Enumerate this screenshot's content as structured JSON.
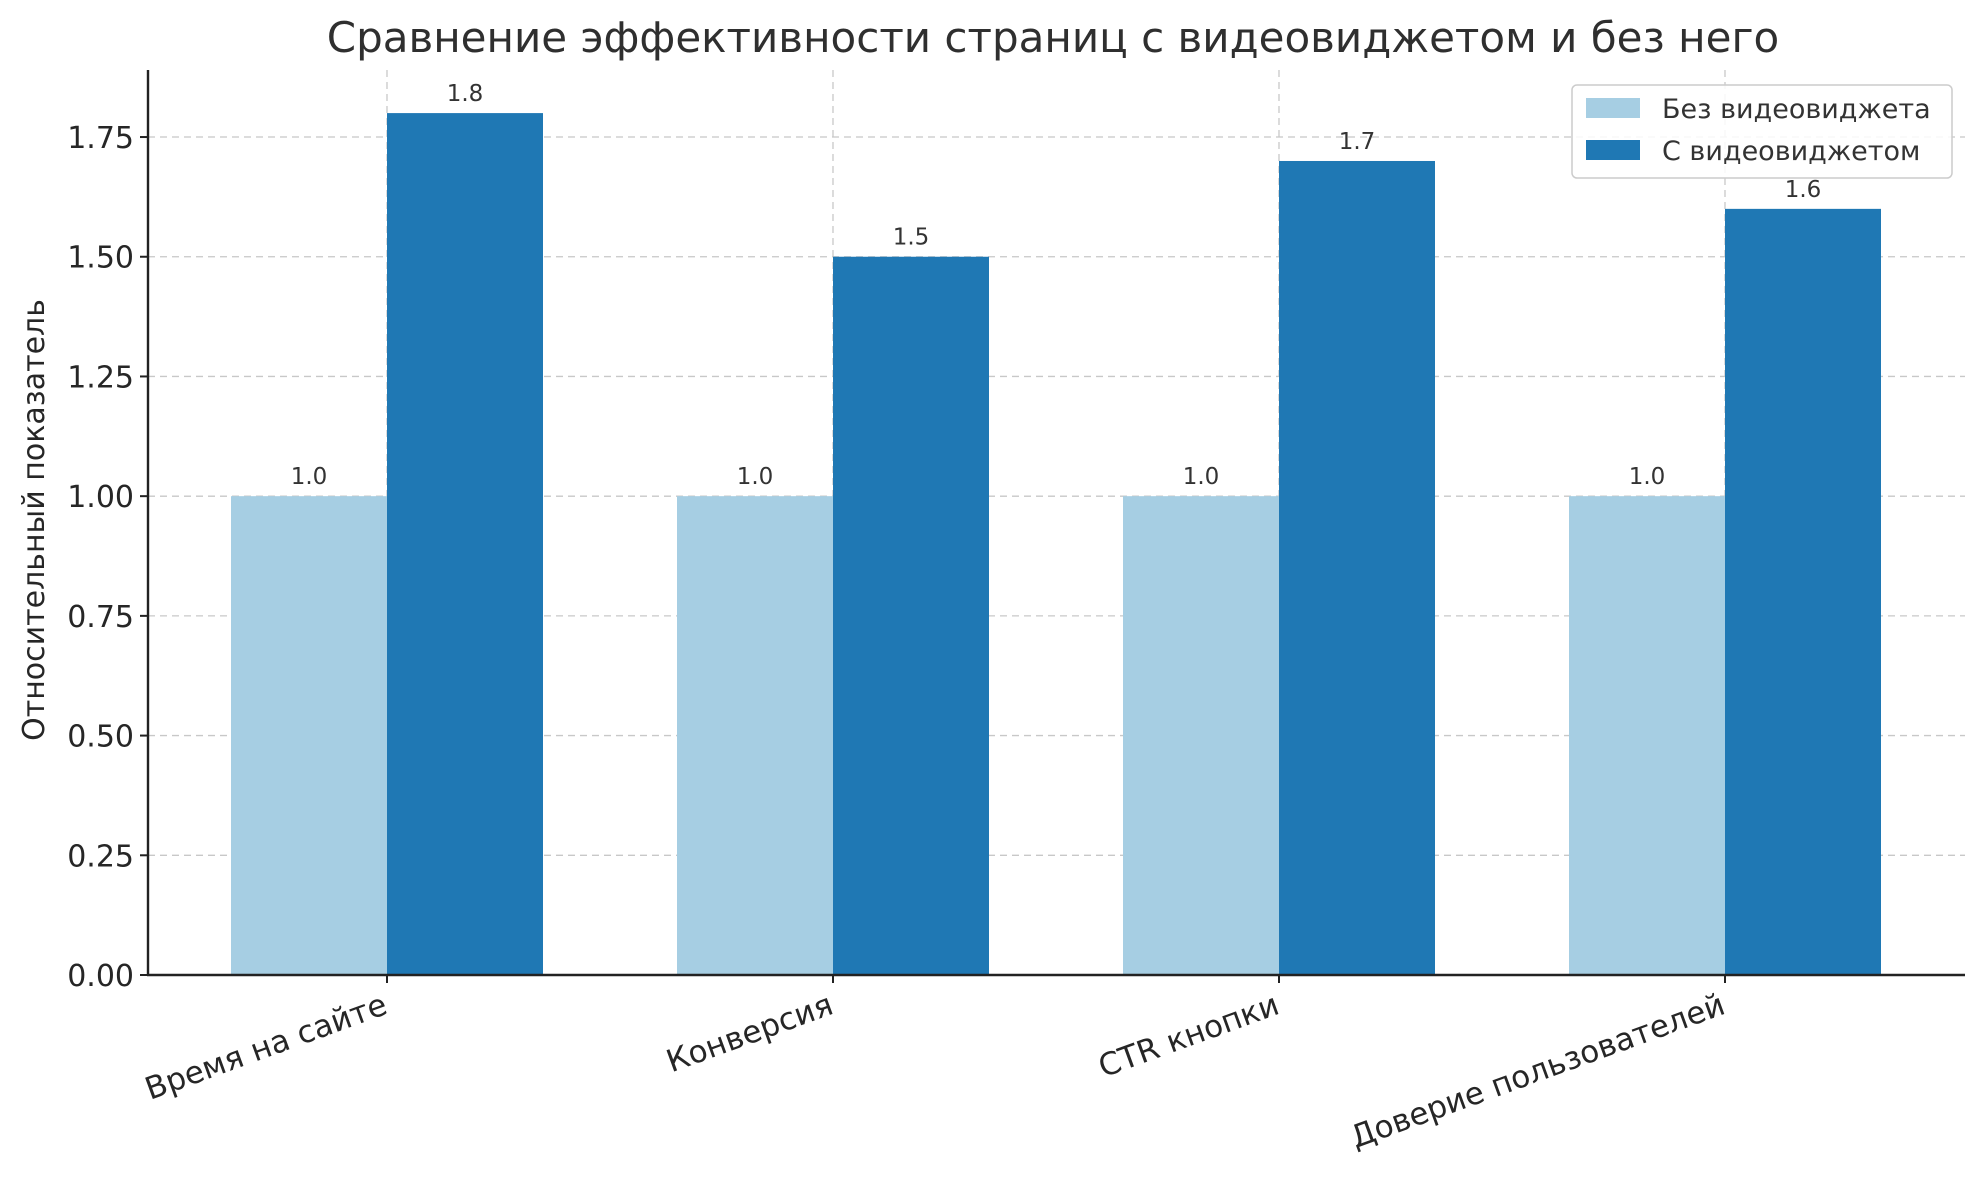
{
  "chart_data": {
    "type": "bar",
    "title": "Сравнение эффективности страниц с видеовиджетом и без него",
    "xlabel": "",
    "ylabel": "Относительный показатель",
    "categories": [
      "Время на сайте",
      "Конверсия",
      "CTR кнопки",
      "Доверие пользователей"
    ],
    "series": [
      {
        "name": "Без видеовиджета",
        "values": [
          1.0,
          1.0,
          1.0,
          1.0
        ],
        "labels": [
          "1.0",
          "1.0",
          "1.0",
          "1.0"
        ],
        "color": "#a6cee3"
      },
      {
        "name": "С видеовиджетом",
        "values": [
          1.8,
          1.5,
          1.7,
          1.6
        ],
        "labels": [
          "1.8",
          "1.5",
          "1.7",
          "1.6"
        ],
        "color": "#1f78b4"
      }
    ],
    "ylim": [
      0,
      1.89
    ],
    "yticks": [
      0,
      0.25,
      0.5,
      0.75,
      1.0,
      1.25,
      1.5,
      1.75
    ],
    "ytick_labels": [
      "0.00",
      "0.25",
      "0.50",
      "0.75",
      "1.00",
      "1.25",
      "1.50",
      "1.75"
    ],
    "grid": true,
    "legend_position": "top-right"
  }
}
